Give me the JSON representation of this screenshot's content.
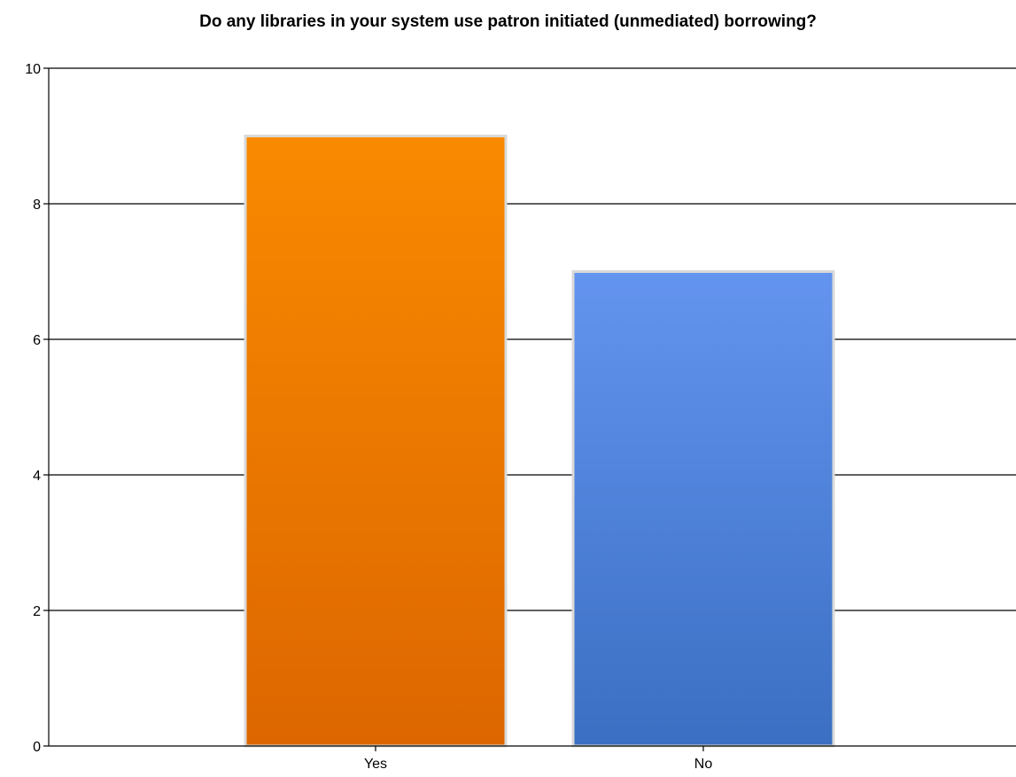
{
  "chart_data": {
    "type": "bar",
    "title": "Do any libraries in your system use patron initiated (unmediated) borrowing?",
    "xlabel": "",
    "ylabel": "",
    "categories": [
      "Yes",
      "No"
    ],
    "values": [
      9,
      7
    ],
    "ylim": [
      0,
      10
    ],
    "yticks": [
      "0",
      "2",
      "4",
      "6",
      "8",
      "10"
    ],
    "grid": true,
    "legend": "none",
    "colors": {
      "Yes": {
        "top": "#f98a00",
        "bottom": "#dd6600"
      },
      "No": {
        "top": "#6394ef",
        "bottom": "#3a6fc2"
      }
    }
  }
}
